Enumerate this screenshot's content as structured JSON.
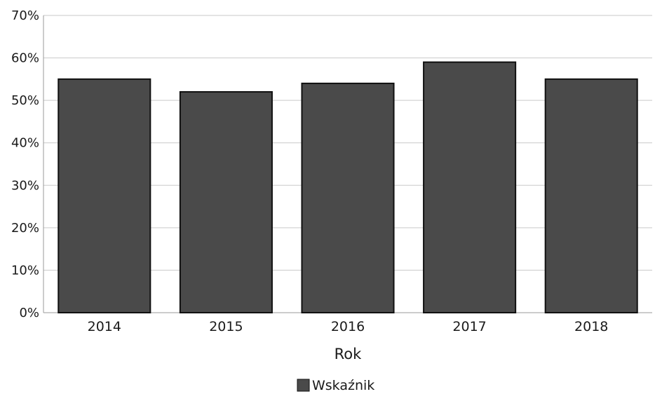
{
  "chart_data": {
    "type": "bar",
    "categories": [
      "2014",
      "2015",
      "2016",
      "2017",
      "2018"
    ],
    "series": [
      {
        "name": "Wskaźnik",
        "values": [
          55,
          52,
          54,
          59,
          55
        ]
      }
    ],
    "title": "",
    "xlabel": "Rok",
    "ylabel": "",
    "ylim": [
      0,
      70
    ],
    "yticks": [
      "0%",
      "10%",
      "20%",
      "30%",
      "40%",
      "50%",
      "60%",
      "70%"
    ],
    "grid": true,
    "legend": "bottom-center",
    "bar_color": "#4a4a4a",
    "bar_edge_color": "#111111",
    "grid_color": "#c9c9c9"
  }
}
